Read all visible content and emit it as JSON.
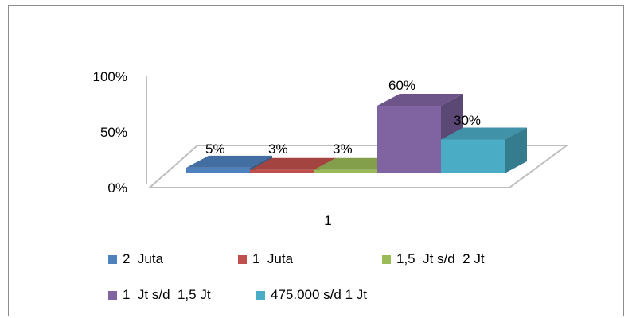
{
  "chart_data": {
    "type": "bar",
    "categories": [
      "1"
    ],
    "series": [
      {
        "name": "2  Juta",
        "values": [
          5
        ],
        "label": "5%",
        "color": "#4F81BD"
      },
      {
        "name": "1  Juta",
        "values": [
          3
        ],
        "label": "3%",
        "color": "#C0504D"
      },
      {
        "name": "1,5  Jt s/d  2 Jt",
        "values": [
          3
        ],
        "label": "3%",
        "color": "#9BBB59"
      },
      {
        "name": "1  Jt s/d  1,5 Jt",
        "values": [
          60
        ],
        "label": "60%",
        "color": "#8064A2"
      },
      {
        "name": "475.000 s/d 1 Jt",
        "values": [
          30
        ],
        "label": "30%",
        "color": "#4BACC6"
      }
    ],
    "yticks": [
      "0%",
      "50%",
      "100%"
    ],
    "ylim": [
      0,
      100
    ],
    "legend_position": "bottom",
    "style": "3d-clustered-column"
  }
}
